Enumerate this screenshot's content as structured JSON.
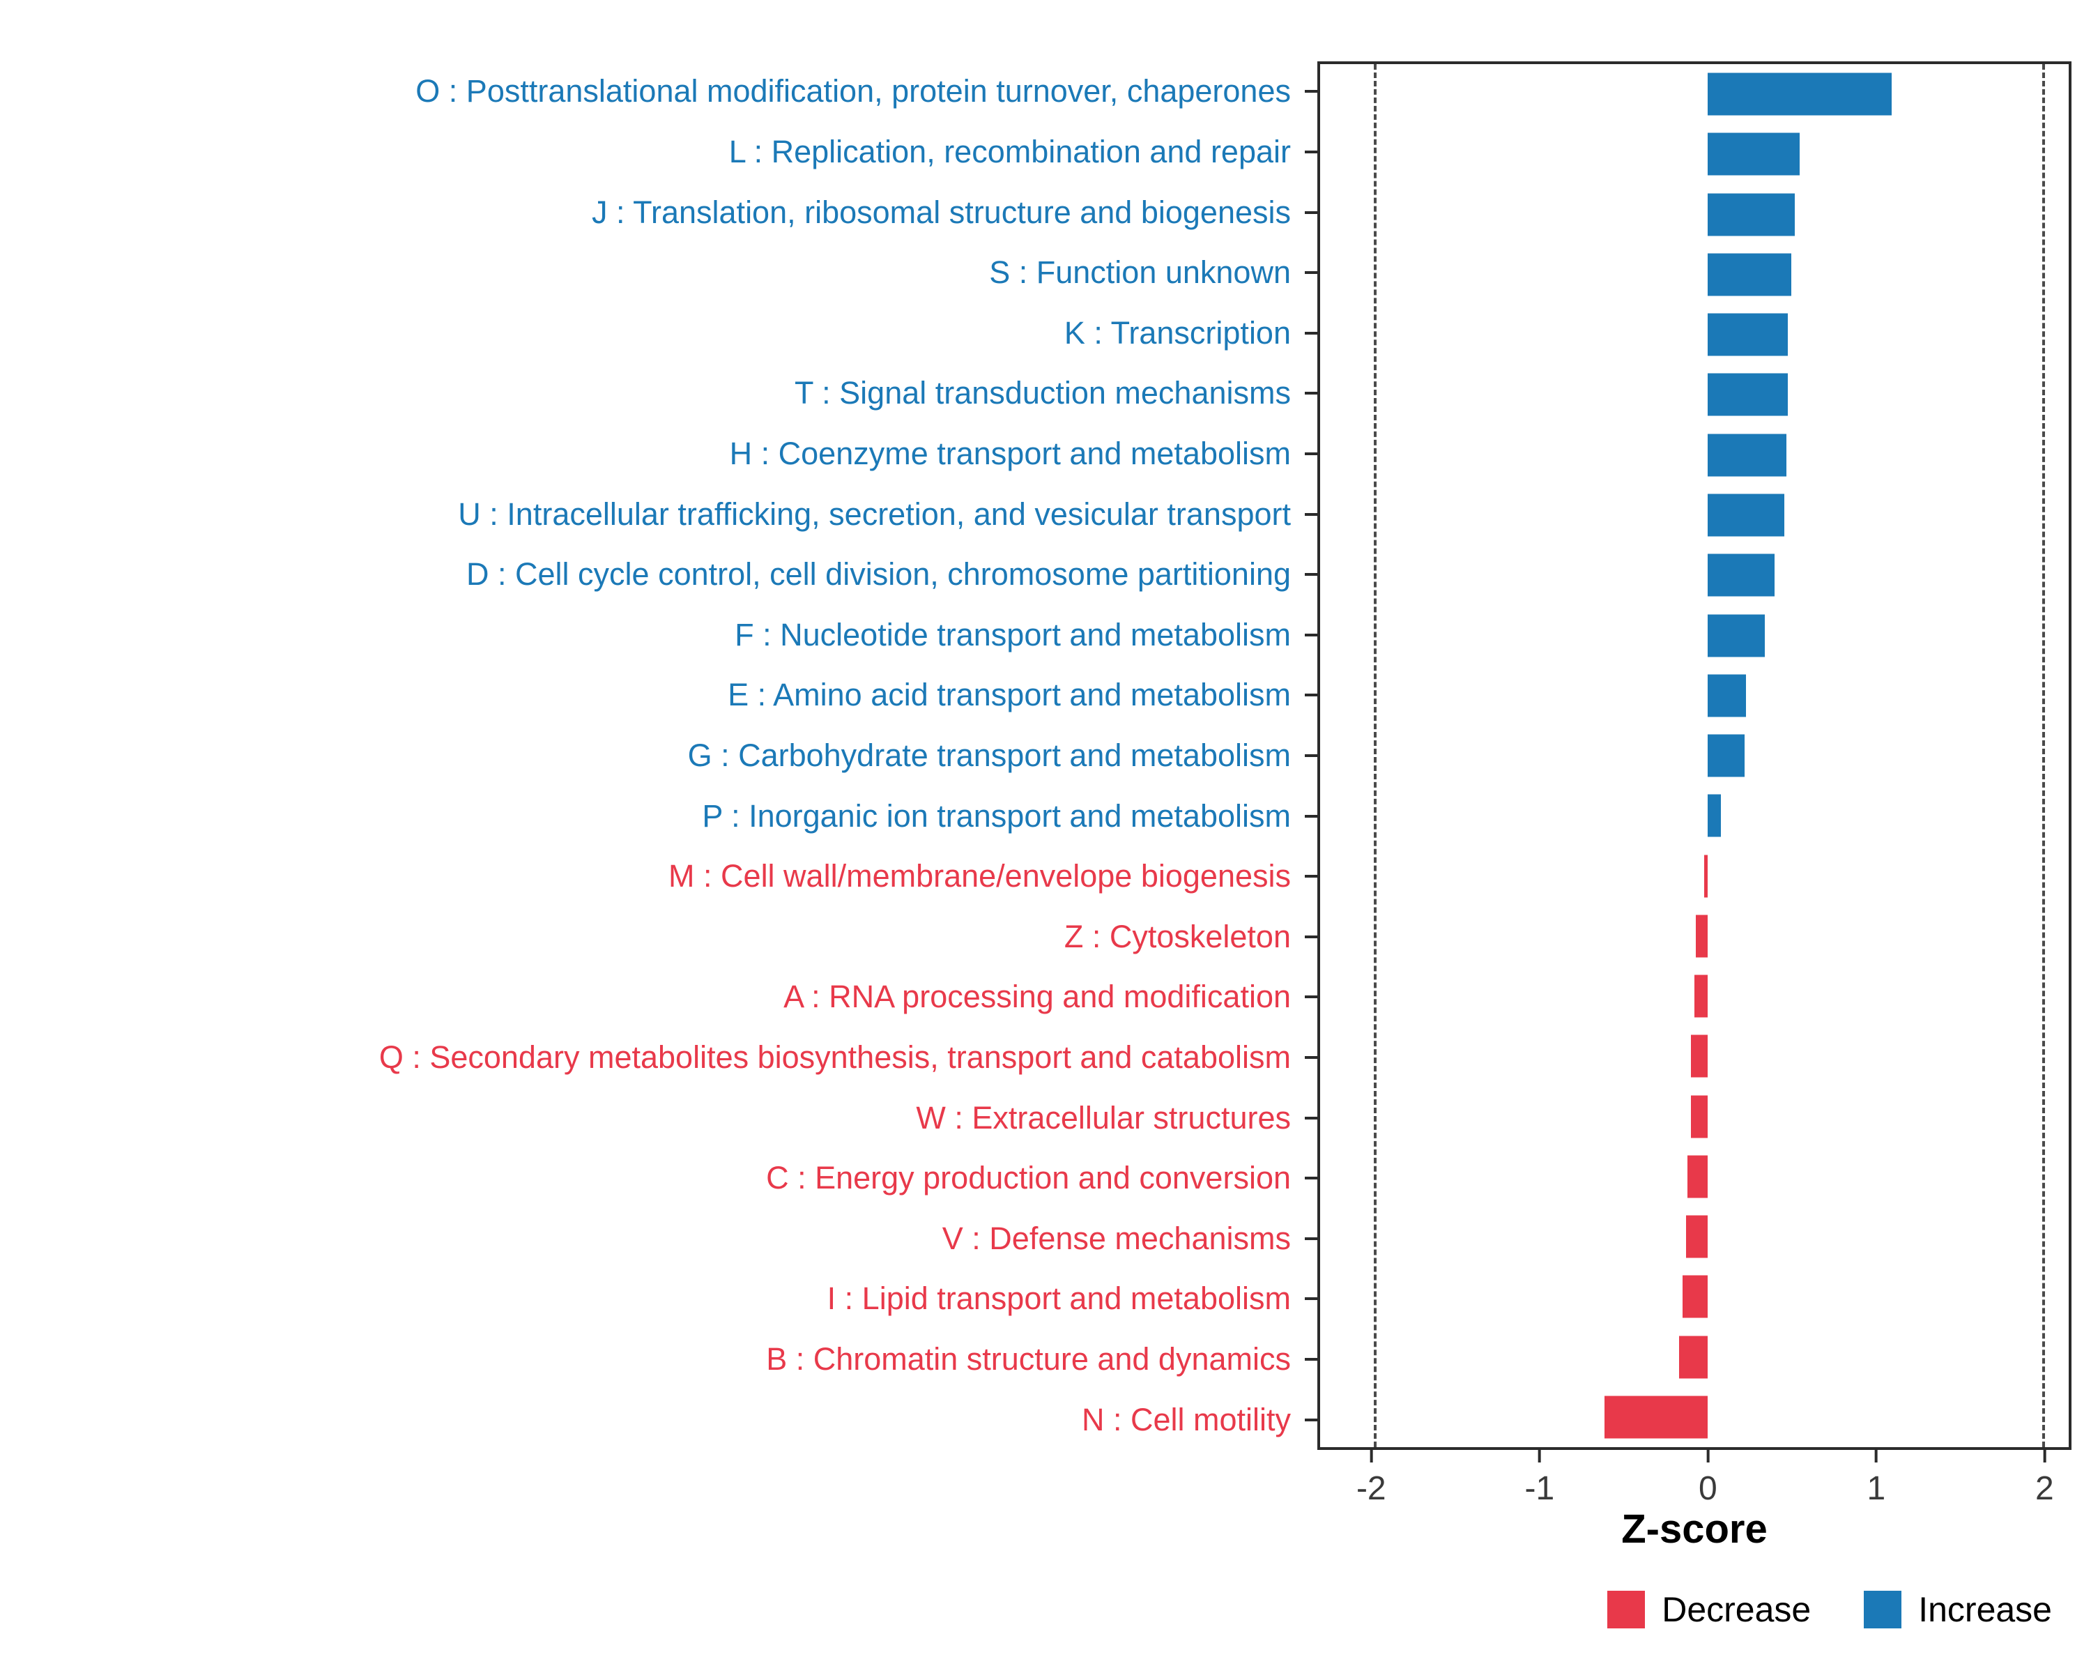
{
  "chart_data": {
    "type": "bar",
    "orientation": "horizontal",
    "title": "",
    "xlabel": "Z-score",
    "ylabel": "",
    "xlim": [
      -2.32,
      2.16
    ],
    "x_ticks": [
      -2,
      -1,
      0,
      1,
      2
    ],
    "reference_lines": [
      -2,
      2
    ],
    "grid": false,
    "legend_position": "bottom-right",
    "colors": {
      "increase": "#1B79B7",
      "decrease": "#E8394A"
    },
    "legend": [
      {
        "label": "Decrease",
        "color": "#E8394A"
      },
      {
        "label": "Increase",
        "color": "#1B79B7"
      }
    ],
    "categories": [
      "O : Posttranslational modification, protein turnover, chaperones",
      "L : Replication, recombination and repair",
      "J : Translation, ribosomal structure and biogenesis",
      "S : Function unknown",
      "K : Transcription",
      "T : Signal transduction mechanisms",
      "H : Coenzyme transport and metabolism",
      "U : Intracellular trafficking, secretion, and vesicular transport",
      "D : Cell cycle control, cell division, chromosome partitioning",
      "F : Nucleotide transport and metabolism",
      "E : Amino acid transport and metabolism",
      "G : Carbohydrate transport and metabolism",
      "P : Inorganic ion transport and metabolism",
      "M : Cell wall/membrane/envelope biogenesis",
      "Z : Cytoskeleton",
      "A : RNA processing and modification",
      "Q : Secondary metabolites biosynthesis, transport and catabolism",
      "W : Extracellular structures",
      "C : Energy production and conversion",
      "V : Defense mechanisms",
      "I : Lipid transport and metabolism",
      "B : Chromatin structure and dynamics",
      "N : Cell motility"
    ],
    "values": [
      1.1,
      0.55,
      0.52,
      0.5,
      0.48,
      0.48,
      0.47,
      0.46,
      0.4,
      0.34,
      0.23,
      0.22,
      0.08,
      -0.02,
      -0.07,
      -0.08,
      -0.1,
      -0.1,
      -0.12,
      -0.13,
      -0.15,
      -0.17,
      -0.62
    ]
  }
}
